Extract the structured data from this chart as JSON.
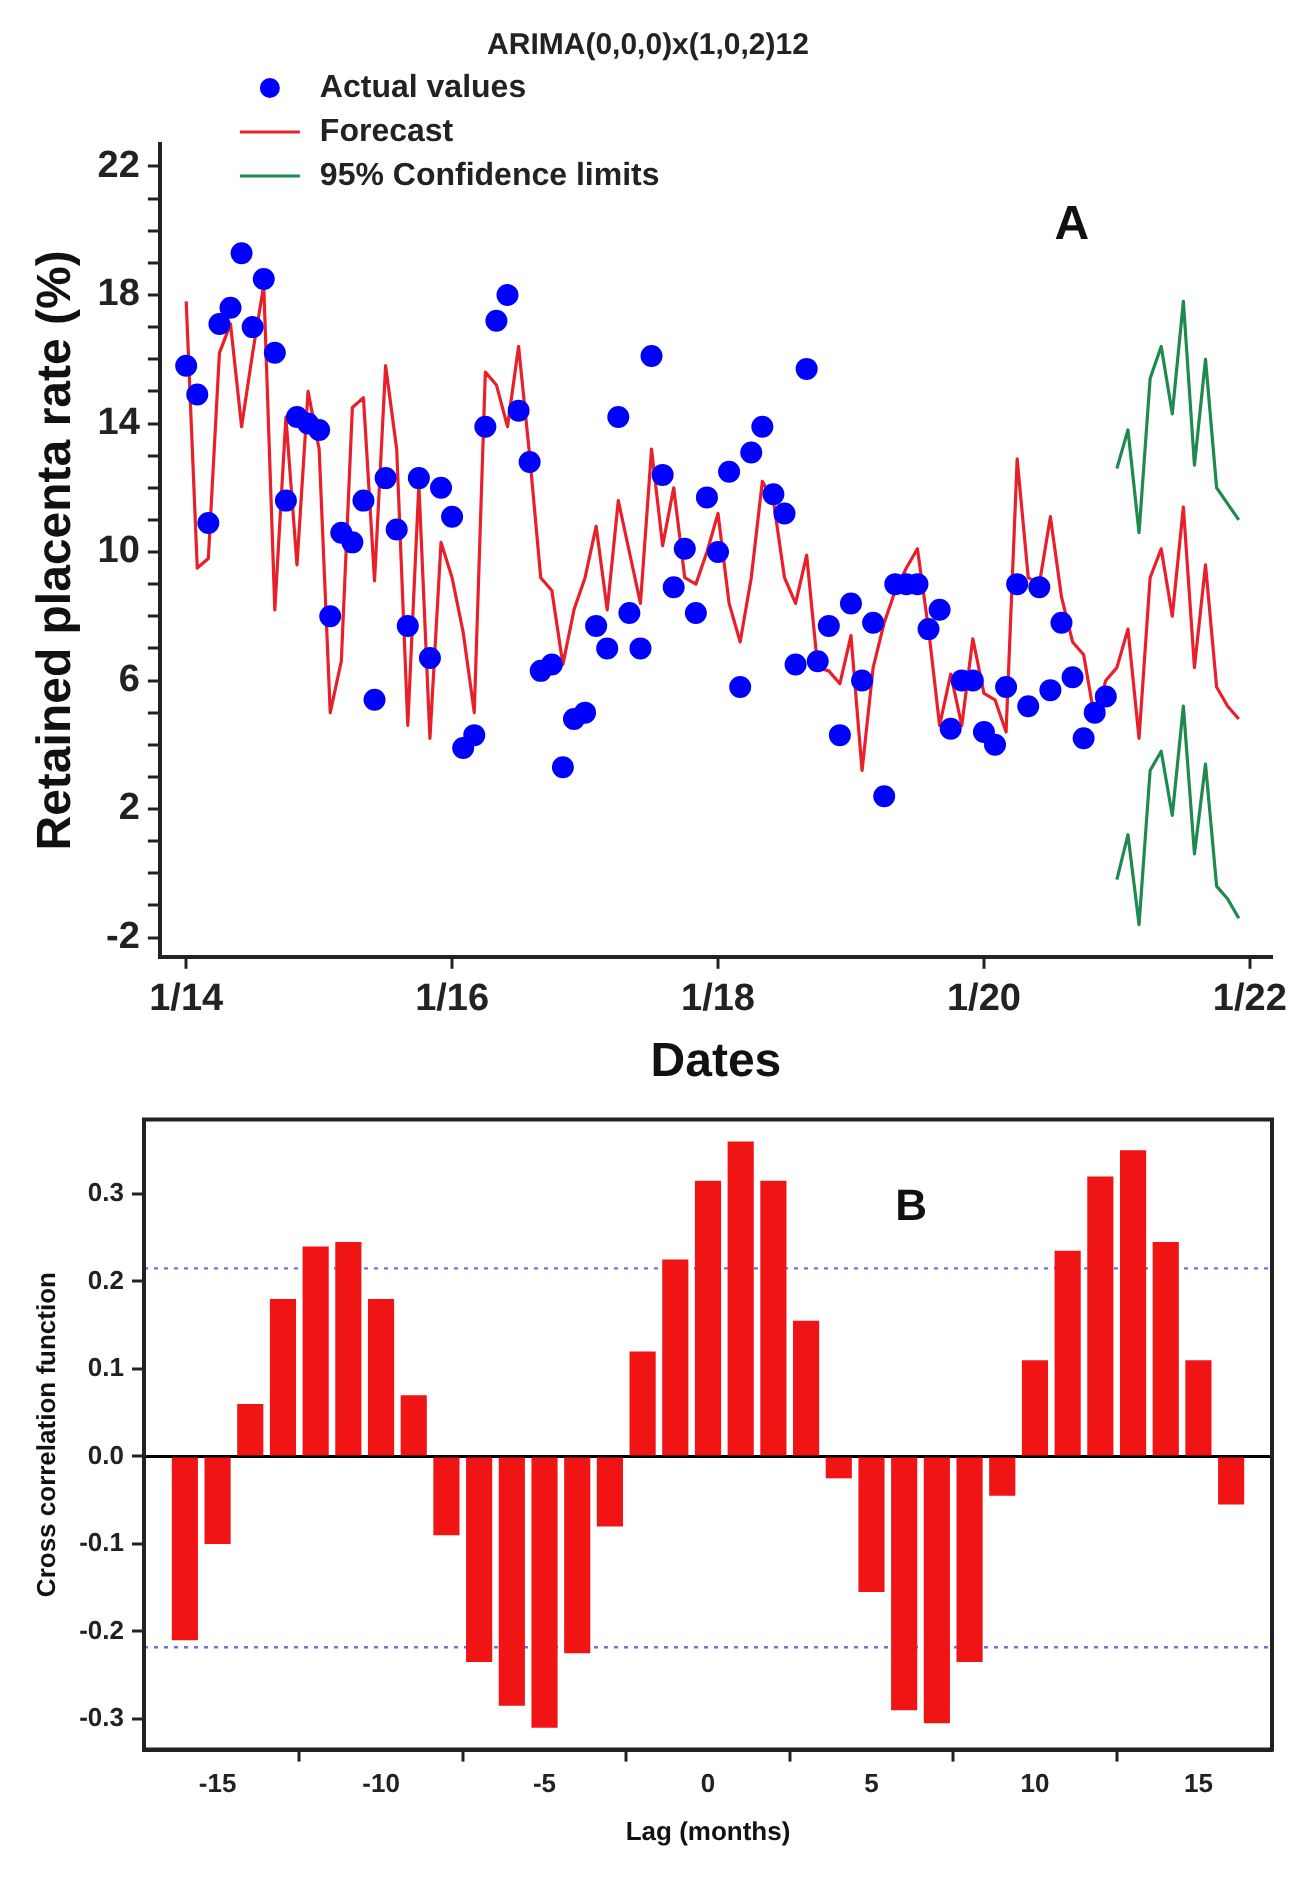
{
  "chart_data": [
    {
      "type": "line",
      "title": "ARIMA(0,0,0)x(1,0,2)12",
      "xlabel": "Dates",
      "ylabel": "Retained placenta rate (%)",
      "annotations": [
        "A"
      ],
      "legend": "top left",
      "grid": false,
      "x": [
        "2014-01",
        "2014-02",
        "2014-03",
        "2014-04",
        "2014-05",
        "2014-06",
        "2014-07",
        "2014-08",
        "2014-09",
        "2014-10",
        "2014-11",
        "2014-12",
        "2015-01",
        "2015-02",
        "2015-03",
        "2015-04",
        "2015-05",
        "2015-06",
        "2015-07",
        "2015-08",
        "2015-09",
        "2015-10",
        "2015-11",
        "2015-12",
        "2016-01",
        "2016-02",
        "2016-03",
        "2016-04",
        "2016-05",
        "2016-06",
        "2016-07",
        "2016-08",
        "2016-09",
        "2016-10",
        "2016-11",
        "2016-12",
        "2017-01",
        "2017-02",
        "2017-03",
        "2017-04",
        "2017-05",
        "2017-06",
        "2017-07",
        "2017-08",
        "2017-09",
        "2017-10",
        "2017-11",
        "2017-12",
        "2018-01",
        "2018-02",
        "2018-03",
        "2018-04",
        "2018-05",
        "2018-06",
        "2018-07",
        "2018-08",
        "2018-09",
        "2018-10",
        "2018-11",
        "2018-12",
        "2019-01",
        "2019-02",
        "2019-03",
        "2019-04",
        "2019-05",
        "2019-06",
        "2019-07",
        "2019-08",
        "2019-09",
        "2019-10",
        "2019-11",
        "2019-12",
        "2020-01",
        "2020-02",
        "2020-03",
        "2020-04",
        "2020-05",
        "2020-06",
        "2020-07",
        "2020-08",
        "2020-09",
        "2020-10",
        "2020-11",
        "2020-12",
        "2021-01",
        "2021-02",
        "2021-03",
        "2021-04",
        "2021-05",
        "2021-06",
        "2021-07",
        "2021-08",
        "2021-09",
        "2021-10",
        "2021-11",
        "2021-12"
      ],
      "series": [
        {
          "name": "Actual values",
          "type": "scatter",
          "marker": "circle",
          "color": "#0000ff",
          "values": [
            15.8,
            14.9,
            10.9,
            17.1,
            17.6,
            19.3,
            17.0,
            18.5,
            16.2,
            11.6,
            14.2,
            14.0,
            13.8,
            8.0,
            10.6,
            10.3,
            11.6,
            5.4,
            12.3,
            10.7,
            7.7,
            12.3,
            6.7,
            12.0,
            11.1,
            3.9,
            4.3,
            13.9,
            17.2,
            18.0,
            14.4,
            12.8,
            6.3,
            6.5,
            3.3,
            4.8,
            5.0,
            7.7,
            7.0,
            14.2,
            8.1,
            7.0,
            16.1,
            12.4,
            8.9,
            10.1,
            8.1,
            11.7,
            10.0,
            12.5,
            5.8,
            13.1,
            13.9,
            11.8,
            11.2,
            6.5,
            15.7,
            6.6,
            7.7,
            4.3,
            8.4,
            6.0,
            7.8,
            2.4,
            9.0,
            9.0,
            9.0,
            7.6,
            8.2,
            4.5,
            6.0,
            6.0,
            4.4,
            4.0,
            5.8,
            9.0,
            5.2,
            8.9,
            5.7,
            7.8,
            6.1,
            4.2,
            5.0,
            5.5,
            null,
            null,
            null,
            null,
            null,
            null,
            null,
            null,
            null,
            null,
            null,
            null
          ]
        },
        {
          "name": "Forecast",
          "type": "line",
          "marker": "none",
          "color": "#e8202a",
          "values": [
            17.8,
            9.5,
            9.8,
            16.2,
            17.1,
            13.9,
            16.2,
            18.3,
            8.2,
            14.2,
            9.6,
            15.0,
            13.2,
            5.0,
            6.6,
            14.5,
            14.8,
            9.1,
            15.8,
            13.2,
            4.6,
            12.1,
            4.2,
            10.3,
            9.2,
            7.5,
            5.0,
            15.6,
            15.2,
            13.9,
            16.4,
            13.0,
            9.2,
            8.8,
            6.5,
            8.2,
            9.2,
            10.8,
            8.2,
            11.6,
            10.0,
            8.4,
            13.2,
            10.2,
            12.0,
            9.2,
            9.0,
            10.0,
            11.2,
            8.4,
            7.2,
            9.2,
            12.2,
            11.6,
            9.2,
            8.4,
            9.9,
            6.4,
            6.3,
            5.9,
            7.4,
            3.2,
            6.4,
            7.8,
            8.8,
            9.5,
            10.1,
            7.6,
            4.6,
            6.2,
            4.6,
            7.3,
            5.6,
            5.4,
            4.4,
            12.9,
            9.2,
            9.0,
            11.1,
            8.6,
            7.2,
            6.8,
            4.8,
            6.0,
            6.4,
            7.6,
            4.2,
            9.2,
            10.1,
            8.0,
            11.4,
            6.4,
            9.6,
            5.8,
            5.2,
            4.8
          ]
        },
        {
          "name": "95% Confidence limits",
          "type": "line",
          "marker": "none",
          "color": "#1e8a4e",
          "x": [
            "2021-01",
            "2021-02",
            "2021-03",
            "2021-04",
            "2021-05",
            "2021-06",
            "2021-07",
            "2021-08",
            "2021-09",
            "2021-10",
            "2021-11",
            "2021-12"
          ],
          "values": [
            12.6,
            13.8,
            10.6,
            15.4,
            16.4,
            14.3,
            17.8,
            12.7,
            16.0,
            12.0,
            11.5,
            11.0
          ]
        },
        {
          "type": "line",
          "marker": "none",
          "color": "#1e8a4e",
          "x": [
            "2021-01",
            "2021-02",
            "2021-03",
            "2021-04",
            "2021-05",
            "2021-06",
            "2021-07",
            "2021-08",
            "2021-09",
            "2021-10",
            "2021-11",
            "2021-12"
          ],
          "values": [
            -0.2,
            1.2,
            -1.6,
            3.2,
            3.8,
            1.8,
            5.2,
            0.6,
            3.4,
            -0.4,
            -0.8,
            -1.4
          ]
        }
      ],
      "xlim": [
        "2013-10-20",
        "2022-03"
      ],
      "xticks": [
        {
          "value": "2014-01",
          "label": "1/14"
        },
        {
          "value": "2016-01",
          "label": "1/16"
        },
        {
          "value": "2018-01",
          "label": "1/18"
        },
        {
          "value": "2020-01",
          "label": "1/20"
        },
        {
          "value": "2022-01",
          "label": "1/22"
        }
      ],
      "ylim": [
        -2.6,
        22.7
      ],
      "yticks": [
        -2,
        {
          "value": -1,
          "label": null
        },
        {
          "value": 0,
          "label": null
        },
        {
          "value": 1,
          "label": null
        },
        2,
        {
          "value": 3,
          "label": null
        },
        {
          "value": 4,
          "label": null
        },
        {
          "value": 5,
          "label": null
        },
        6,
        {
          "value": 7,
          "label": null
        },
        {
          "value": 8,
          "label": null
        },
        {
          "value": 9,
          "label": null
        },
        10,
        {
          "value": 11,
          "label": null
        },
        {
          "value": 12,
          "label": null
        },
        {
          "value": 13,
          "label": null
        },
        14,
        {
          "value": 15,
          "label": null
        },
        {
          "value": 16,
          "label": null
        },
        {
          "value": 17,
          "label": null
        },
        18,
        {
          "value": 19,
          "label": null
        },
        {
          "value": 20,
          "label": null
        },
        {
          "value": 21,
          "label": null
        },
        22
      ]
    },
    {
      "type": "bar",
      "xlabel": "Lag (months)",
      "ylabel": "Cross correlation function",
      "annotations": [
        "B"
      ],
      "grid": false,
      "x": [
        -16,
        -15,
        -14,
        -13,
        -12,
        -11,
        -10,
        -9,
        -8,
        -7,
        -6,
        -5,
        -4,
        -3,
        -2,
        -1,
        0,
        1,
        2,
        3,
        4,
        5,
        6,
        7,
        8,
        9,
        10,
        11,
        12,
        13,
        14,
        15,
        16
      ],
      "series": [
        {
          "color": "#f01414",
          "values": [
            -0.21,
            -0.1,
            0.06,
            0.18,
            0.24,
            0.245,
            0.18,
            0.07,
            -0.09,
            -0.235,
            -0.285,
            -0.31,
            -0.225,
            -0.08,
            0.12,
            0.225,
            0.315,
            0.36,
            0.315,
            0.155,
            -0.025,
            -0.155,
            -0.29,
            -0.305,
            -0.235,
            -0.045,
            0.11,
            0.235,
            0.32,
            0.35,
            0.245,
            0.11,
            -0.055
          ]
        }
      ],
      "xlim": [
        -17.25,
        17.25
      ],
      "xticks": [
        -15,
        -10,
        -5,
        0,
        5,
        10,
        15
      ],
      "ylim": [
        -0.335,
        0.385
      ],
      "yticks": [
        -0.3,
        -0.2,
        -0.1,
        {
          "value": 0,
          "label": "0.0"
        },
        0.1,
        0.2,
        0.3
      ],
      "ref_lines": [
        {
          "axis": "y",
          "value": 0,
          "color": "#000000",
          "line_style": "solid"
        },
        {
          "axis": "y",
          "value": 0.215,
          "color": "#7070e0",
          "line_style": "dotted"
        },
        {
          "axis": "y",
          "value": -0.218,
          "color": "#7070e0",
          "line_style": "dotted"
        }
      ]
    }
  ]
}
